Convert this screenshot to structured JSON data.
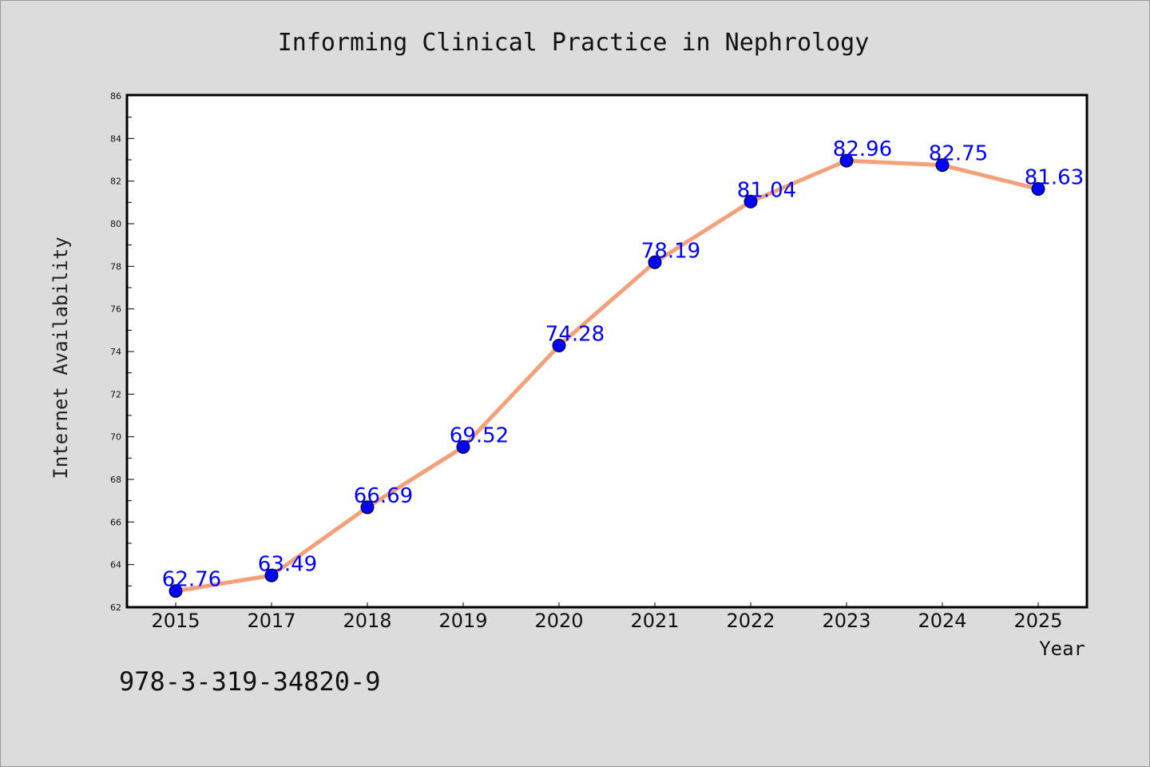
{
  "chart_data": {
    "type": "line",
    "title": "Informing Clinical Practice in Nephrology",
    "xlabel": "Year",
    "ylabel": "Internet Availability",
    "categories": [
      "2015",
      "2017",
      "2018",
      "2019",
      "2020",
      "2021",
      "2022",
      "2023",
      "2024",
      "2025"
    ],
    "series": [
      {
        "values": [
          62.76,
          63.49,
          66.69,
          69.52,
          74.28,
          78.19,
          81.04,
          82.96,
          82.75,
          81.63
        ],
        "labels": [
          "62.76",
          "63.49",
          "66.69",
          "69.52",
          "74.28",
          "78.19",
          "81.04",
          "82.96",
          "82.75",
          "81.63"
        ],
        "line_color": "#f4a07a",
        "marker_color": "#0000ff"
      }
    ],
    "ylim": [
      62,
      86
    ],
    "yticks": [
      "62",
      "64",
      "66",
      "68",
      "70",
      "72",
      "74",
      "76",
      "78",
      "80",
      "82",
      "84",
      "86"
    ],
    "grid": false,
    "legend": "none"
  },
  "footnote": "978-3-319-34820-9"
}
